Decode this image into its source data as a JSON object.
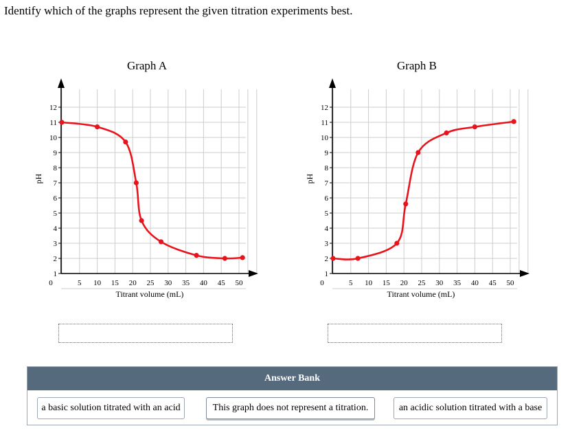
{
  "question": "Identify which of the graphs represent the given titration experiments best.",
  "colors": {
    "curve": "#e8131b",
    "grid": "#cccccc",
    "bank_header": "#566a7e"
  },
  "chart_data": [
    {
      "type": "line",
      "title": "Graph A",
      "xlabel": "Titrant volume (mL)",
      "ylabel": "pH",
      "xlim": [
        0,
        50
      ],
      "ylim": [
        0,
        12
      ],
      "x_ticks": [
        "0",
        "5",
        "10",
        "15",
        "20",
        "25",
        "30",
        "35",
        "40",
        "45",
        "50"
      ],
      "y_ticks": [
        "1",
        "2",
        "3",
        "4",
        "5",
        "6",
        "7",
        "8",
        "9",
        "10",
        "11",
        "12"
      ],
      "grid": true,
      "x": [
        0,
        10,
        18,
        21,
        22.5,
        28,
        38,
        46,
        51
      ],
      "y": [
        11,
        10.7,
        9.7,
        7,
        4.5,
        3.1,
        2.2,
        2.0,
        2.05
      ]
    },
    {
      "type": "line",
      "title": "Graph B",
      "xlabel": "Titrant volume (mL)",
      "ylabel": "pH",
      "xlim": [
        0,
        50
      ],
      "ylim": [
        0,
        12
      ],
      "x_ticks": [
        "0",
        "5",
        "10",
        "15",
        "20",
        "25",
        "30",
        "35",
        "40",
        "45",
        "50"
      ],
      "y_ticks": [
        "1",
        "2",
        "3",
        "4",
        "5",
        "6",
        "7",
        "8",
        "9",
        "10",
        "11",
        "12"
      ],
      "grid": true,
      "x": [
        0,
        7,
        18,
        20.5,
        24,
        32,
        40,
        51
      ],
      "y": [
        2.0,
        2.0,
        3.0,
        5.6,
        9.0,
        10.3,
        10.7,
        11.05
      ]
    }
  ],
  "answer_bank": {
    "title": "Answer Bank",
    "items": [
      "a basic solution titrated with an acid",
      "This graph does not represent a titration.",
      "an acidic solution titrated with a base"
    ]
  }
}
